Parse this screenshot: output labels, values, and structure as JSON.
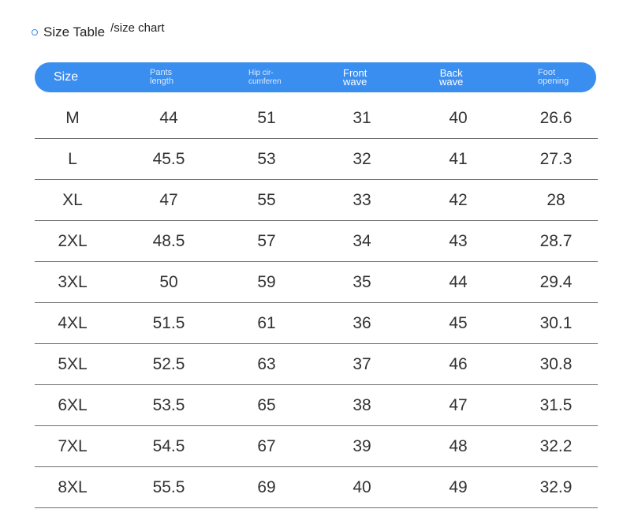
{
  "title": {
    "main": "Size Table",
    "sub": "/size chart"
  },
  "header": {
    "size": "Size",
    "pants_length": [
      "Pants",
      "length"
    ],
    "hip": [
      "Hip cir-",
      "cumferen"
    ],
    "front_wave": [
      "Front",
      "wave"
    ],
    "back_wave": [
      "Back",
      "wave"
    ],
    "foot_opening": [
      "Foot",
      "opening"
    ]
  },
  "colors": {
    "accent": "#3a8ef0",
    "divider": "#6f6f6f"
  },
  "rows": [
    [
      "M",
      "44",
      "51",
      "31",
      "40",
      "26.6"
    ],
    [
      "L",
      "45.5",
      "53",
      "32",
      "41",
      "27.3"
    ],
    [
      "XL",
      "47",
      "55",
      "33",
      "42",
      "28"
    ],
    [
      "2XL",
      "48.5",
      "57",
      "34",
      "43",
      "28.7"
    ],
    [
      "3XL",
      "50",
      "59",
      "35",
      "44",
      "29.4"
    ],
    [
      "4XL",
      "51.5",
      "61",
      "36",
      "45",
      "30.1"
    ],
    [
      "5XL",
      "52.5",
      "63",
      "37",
      "46",
      "30.8"
    ],
    [
      "6XL",
      "53.5",
      "65",
      "38",
      "47",
      "31.5"
    ],
    [
      "7XL",
      "54.5",
      "67",
      "39",
      "48",
      "32.2"
    ],
    [
      "8XL",
      "55.5",
      "69",
      "40",
      "49",
      "32.9"
    ]
  ]
}
